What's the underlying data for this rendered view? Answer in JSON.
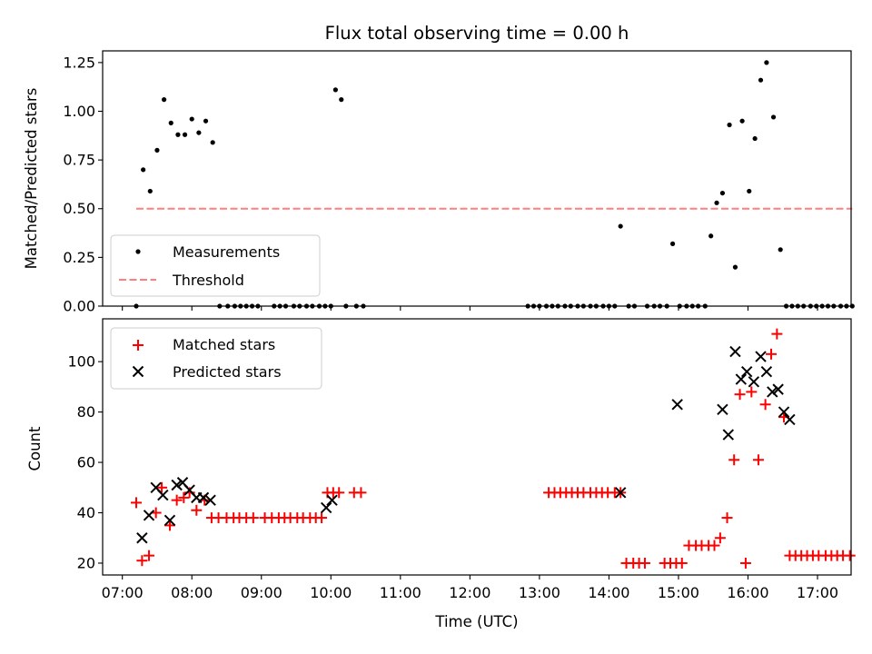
{
  "chart_data": [
    {
      "type": "scatter",
      "title": "Flux total observing time = 0.00 h",
      "xlabel": "",
      "ylabel": "Matched/Predicted stars",
      "xlim": [
        "06:43",
        "17:29"
      ],
      "ylim": [
        0,
        1.31
      ],
      "yticks": [
        0.0,
        0.25,
        0.5,
        0.75,
        1.0,
        1.25
      ],
      "ytick_labels": [
        "0.00",
        "0.25",
        "0.50",
        "0.75",
        "1.00",
        "1.25"
      ],
      "grid": false,
      "legend": {
        "position": "lower left",
        "entries": [
          {
            "label": "Measurements",
            "marker": "dot",
            "color": "#000000"
          },
          {
            "label": "Threshold",
            "marker": "dashed-line",
            "color": "#ff7f7f"
          }
        ]
      },
      "series": [
        {
          "name": "Measurements",
          "points": [
            [
              "07:12",
              0.0
            ],
            [
              "07:18",
              0.7
            ],
            [
              "07:24",
              0.59
            ],
            [
              "07:30",
              0.8
            ],
            [
              "07:36",
              1.06
            ],
            [
              "07:42",
              0.94
            ],
            [
              "07:48",
              0.88
            ],
            [
              "07:54",
              0.88
            ],
            [
              "08:00",
              0.96
            ],
            [
              "08:06",
              0.89
            ],
            [
              "08:12",
              0.95
            ],
            [
              "08:18",
              0.84
            ],
            [
              "08:24",
              0.0
            ],
            [
              "08:31",
              0.0
            ],
            [
              "08:37",
              0.0
            ],
            [
              "08:42",
              0.0
            ],
            [
              "08:47",
              0.0
            ],
            [
              "08:52",
              0.0
            ],
            [
              "08:57",
              0.0
            ],
            [
              "09:11",
              0.0
            ],
            [
              "09:16",
              0.0
            ],
            [
              "09:21",
              0.0
            ],
            [
              "09:28",
              0.0
            ],
            [
              "09:33",
              0.0
            ],
            [
              "09:39",
              0.0
            ],
            [
              "09:44",
              0.0
            ],
            [
              "09:50",
              0.0
            ],
            [
              "09:55",
              0.0
            ],
            [
              "10:00",
              0.0
            ],
            [
              "10:04",
              1.11
            ],
            [
              "10:09",
              1.06
            ],
            [
              "10:13",
              0.0
            ],
            [
              "10:22",
              0.0
            ],
            [
              "10:28",
              0.0
            ],
            [
              "12:50",
              0.0
            ],
            [
              "12:55",
              0.0
            ],
            [
              "13:00",
              0.0
            ],
            [
              "13:06",
              0.0
            ],
            [
              "13:11",
              0.0
            ],
            [
              "13:16",
              0.0
            ],
            [
              "13:22",
              0.0
            ],
            [
              "13:27",
              0.0
            ],
            [
              "13:33",
              0.0
            ],
            [
              "13:38",
              0.0
            ],
            [
              "13:44",
              0.0
            ],
            [
              "13:49",
              0.0
            ],
            [
              "13:55",
              0.0
            ],
            [
              "14:00",
              0.0
            ],
            [
              "14:05",
              0.0
            ],
            [
              "14:10",
              0.41
            ],
            [
              "14:17",
              0.0
            ],
            [
              "14:22",
              0.0
            ],
            [
              "14:33",
              0.0
            ],
            [
              "14:39",
              0.0
            ],
            [
              "14:44",
              0.0
            ],
            [
              "14:50",
              0.0
            ],
            [
              "14:55",
              0.32
            ],
            [
              "15:01",
              0.0
            ],
            [
              "15:07",
              0.0
            ],
            [
              "15:12",
              0.0
            ],
            [
              "15:17",
              0.0
            ],
            [
              "15:23",
              0.0
            ],
            [
              "15:28",
              0.36
            ],
            [
              "15:33",
              0.53
            ],
            [
              "15:38",
              0.58
            ],
            [
              "15:44",
              0.93
            ],
            [
              "15:49",
              0.2
            ],
            [
              "15:55",
              0.95
            ],
            [
              "16:01",
              0.59
            ],
            [
              "16:06",
              0.86
            ],
            [
              "16:11",
              1.16
            ],
            [
              "16:16",
              1.25
            ],
            [
              "16:22",
              0.97
            ],
            [
              "16:28",
              0.29
            ],
            [
              "16:33",
              0.0
            ],
            [
              "16:38",
              0.0
            ],
            [
              "16:43",
              0.0
            ],
            [
              "16:48",
              0.0
            ],
            [
              "16:54",
              0.0
            ],
            [
              "16:59",
              0.0
            ],
            [
              "17:04",
              0.0
            ],
            [
              "17:09",
              0.0
            ],
            [
              "17:14",
              0.0
            ],
            [
              "17:20",
              0.0
            ],
            [
              "17:25",
              0.0
            ],
            [
              "17:30",
              0.0
            ]
          ]
        },
        {
          "name": "Threshold",
          "points": [
            [
              "07:12",
              0.5
            ],
            [
              "17:30",
              0.5
            ]
          ]
        }
      ]
    },
    {
      "type": "scatter",
      "title": "",
      "xlabel": "Time (UTC)",
      "ylabel": "Count",
      "xlim": [
        "06:43",
        "17:29"
      ],
      "ylim": [
        15.3,
        117
      ],
      "yticks": [
        20,
        40,
        60,
        80,
        100
      ],
      "ytick_labels": [
        "20",
        "40",
        "60",
        "80",
        "100"
      ],
      "xticks": [
        "07:00",
        "08:00",
        "09:00",
        "10:00",
        "11:00",
        "12:00",
        "13:00",
        "14:00",
        "15:00",
        "16:00",
        "17:00"
      ],
      "grid": false,
      "legend": {
        "position": "upper left",
        "entries": [
          {
            "label": "Matched stars",
            "marker": "plus",
            "color": "#ff0000"
          },
          {
            "label": "Predicted stars",
            "marker": "x",
            "color": "#000000"
          }
        ]
      },
      "series": [
        {
          "name": "Matched stars",
          "points": [
            [
              "07:12",
              44
            ],
            [
              "07:17",
              21
            ],
            [
              "07:23",
              23
            ],
            [
              "07:29",
              40
            ],
            [
              "07:34",
              50
            ],
            [
              "07:41",
              35
            ],
            [
              "07:47",
              45
            ],
            [
              "07:53",
              46
            ],
            [
              "07:58",
              48
            ],
            [
              "08:04",
              41
            ],
            [
              "08:11",
              45
            ],
            [
              "08:17",
              38
            ],
            [
              "08:23",
              38
            ],
            [
              "08:30",
              38
            ],
            [
              "08:36",
              38
            ],
            [
              "08:41",
              38
            ],
            [
              "08:47",
              38
            ],
            [
              "08:53",
              38
            ],
            [
              "09:03",
              38
            ],
            [
              "09:09",
              38
            ],
            [
              "09:15",
              38
            ],
            [
              "09:20",
              38
            ],
            [
              "09:25",
              38
            ],
            [
              "09:31",
              38
            ],
            [
              "09:36",
              38
            ],
            [
              "09:42",
              38
            ],
            [
              "09:47",
              38
            ],
            [
              "09:52",
              38
            ],
            [
              "09:57",
              48
            ],
            [
              "10:02",
              48
            ],
            [
              "10:07",
              48
            ],
            [
              "10:20",
              48
            ],
            [
              "10:26",
              48
            ],
            [
              "13:08",
              48
            ],
            [
              "13:13",
              48
            ],
            [
              "13:18",
              48
            ],
            [
              "13:23",
              48
            ],
            [
              "13:28",
              48
            ],
            [
              "13:33",
              48
            ],
            [
              "13:38",
              48
            ],
            [
              "13:44",
              48
            ],
            [
              "13:49",
              48
            ],
            [
              "13:54",
              48
            ],
            [
              "13:59",
              48
            ],
            [
              "14:05",
              48
            ],
            [
              "14:10",
              48
            ],
            [
              "14:15",
              20
            ],
            [
              "14:21",
              20
            ],
            [
              "14:26",
              20
            ],
            [
              "14:31",
              20
            ],
            [
              "14:48",
              20
            ],
            [
              "14:53",
              20
            ],
            [
              "14:58",
              20
            ],
            [
              "15:03",
              20
            ],
            [
              "15:09",
              27
            ],
            [
              "15:15",
              27
            ],
            [
              "15:20",
              27
            ],
            [
              "15:26",
              27
            ],
            [
              "15:31",
              27
            ],
            [
              "15:36",
              30
            ],
            [
              "15:42",
              38
            ],
            [
              "15:48",
              61
            ],
            [
              "15:53",
              87
            ],
            [
              "15:58",
              20
            ],
            [
              "16:03",
              88
            ],
            [
              "16:09",
              61
            ],
            [
              "16:15",
              83
            ],
            [
              "16:20",
              103
            ],
            [
              "16:25",
              111
            ],
            [
              "16:31",
              78
            ],
            [
              "16:36",
              23
            ],
            [
              "16:41",
              23
            ],
            [
              "16:46",
              23
            ],
            [
              "16:51",
              23
            ],
            [
              "16:56",
              23
            ],
            [
              "17:01",
              23
            ],
            [
              "17:07",
              23
            ],
            [
              "17:12",
              23
            ],
            [
              "17:17",
              23
            ],
            [
              "17:22",
              23
            ],
            [
              "17:28",
              23
            ]
          ]
        },
        {
          "name": "Predicted stars",
          "points": [
            [
              "07:17",
              30
            ],
            [
              "07:23",
              39
            ],
            [
              "07:29",
              50
            ],
            [
              "07:35",
              47
            ],
            [
              "07:41",
              37
            ],
            [
              "07:47",
              51
            ],
            [
              "07:52",
              52
            ],
            [
              "07:58",
              49
            ],
            [
              "08:04",
              46
            ],
            [
              "08:10",
              46
            ],
            [
              "08:16",
              45
            ],
            [
              "09:56",
              42
            ],
            [
              "10:01",
              45
            ],
            [
              "14:10",
              48
            ],
            [
              "14:59",
              83
            ],
            [
              "15:38",
              81
            ],
            [
              "15:43",
              71
            ],
            [
              "15:49",
              104
            ],
            [
              "15:54",
              93
            ],
            [
              "15:59",
              96
            ],
            [
              "16:05",
              92
            ],
            [
              "16:11",
              102
            ],
            [
              "16:16",
              96
            ],
            [
              "16:21",
              88
            ],
            [
              "16:26",
              89
            ],
            [
              "16:31",
              80
            ],
            [
              "16:36",
              77
            ]
          ]
        }
      ]
    }
  ]
}
